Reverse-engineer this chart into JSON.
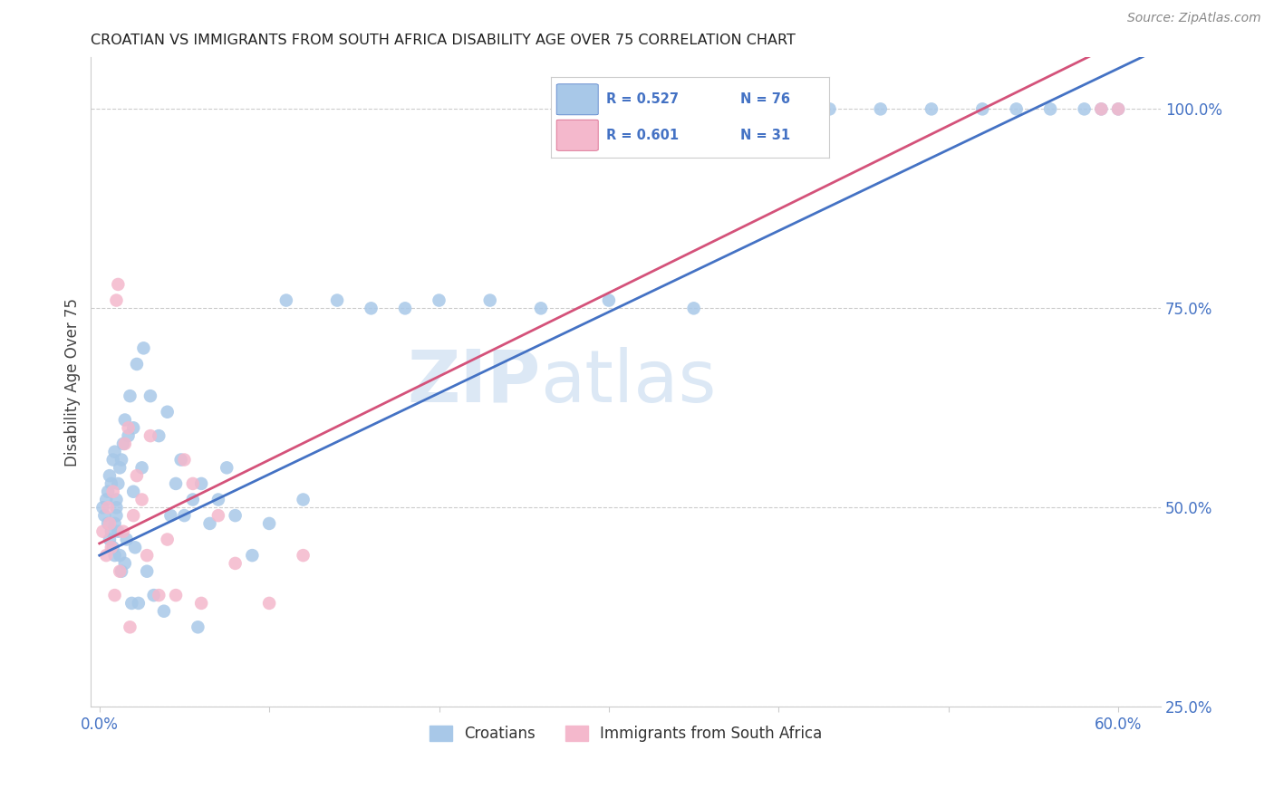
{
  "title": "CROATIAN VS IMMIGRANTS FROM SOUTH AFRICA DISABILITY AGE OVER 75 CORRELATION CHART",
  "source": "Source: ZipAtlas.com",
  "ylabel": "Disability Age Over 75",
  "blue_color": "#a8c8e8",
  "pink_color": "#f4b8cc",
  "blue_line_color": "#4472c4",
  "pink_line_color": "#d4527a",
  "axis_color": "#4472c4",
  "watermark_color": "#dce8f5",
  "blue_r": "R = 0.527",
  "blue_n": "N = 76",
  "pink_r": "R = 0.601",
  "pink_n": "N = 31",
  "croatians_x": [
    0.002,
    0.003,
    0.004,
    0.005,
    0.005,
    0.006,
    0.006,
    0.007,
    0.007,
    0.008,
    0.008,
    0.009,
    0.009,
    0.009,
    0.01,
    0.01,
    0.01,
    0.011,
    0.011,
    0.012,
    0.012,
    0.013,
    0.013,
    0.014,
    0.015,
    0.015,
    0.016,
    0.017,
    0.018,
    0.019,
    0.02,
    0.02,
    0.021,
    0.022,
    0.023,
    0.025,
    0.026,
    0.028,
    0.03,
    0.032,
    0.035,
    0.038,
    0.04,
    0.042,
    0.045,
    0.048,
    0.05,
    0.055,
    0.058,
    0.06,
    0.065,
    0.07,
    0.075,
    0.08,
    0.09,
    0.1,
    0.11,
    0.12,
    0.14,
    0.16,
    0.18,
    0.2,
    0.23,
    0.26,
    0.3,
    0.35,
    0.4,
    0.43,
    0.46,
    0.49,
    0.52,
    0.54,
    0.56,
    0.58,
    0.59,
    0.6
  ],
  "croatians_y": [
    0.5,
    0.49,
    0.51,
    0.48,
    0.52,
    0.46,
    0.54,
    0.47,
    0.53,
    0.45,
    0.56,
    0.44,
    0.57,
    0.48,
    0.5,
    0.51,
    0.49,
    0.53,
    0.47,
    0.55,
    0.44,
    0.56,
    0.42,
    0.58,
    0.43,
    0.61,
    0.46,
    0.59,
    0.64,
    0.38,
    0.52,
    0.6,
    0.45,
    0.68,
    0.38,
    0.55,
    0.7,
    0.42,
    0.64,
    0.39,
    0.59,
    0.37,
    0.62,
    0.49,
    0.53,
    0.56,
    0.49,
    0.51,
    0.35,
    0.53,
    0.48,
    0.51,
    0.55,
    0.49,
    0.44,
    0.48,
    0.76,
    0.51,
    0.76,
    0.75,
    0.75,
    0.76,
    0.76,
    0.75,
    0.76,
    0.75,
    1.0,
    1.0,
    1.0,
    1.0,
    1.0,
    1.0,
    1.0,
    1.0,
    1.0,
    1.0
  ],
  "sa_x": [
    0.002,
    0.004,
    0.005,
    0.006,
    0.007,
    0.008,
    0.009,
    0.01,
    0.011,
    0.012,
    0.014,
    0.015,
    0.017,
    0.018,
    0.02,
    0.022,
    0.025,
    0.028,
    0.03,
    0.035,
    0.04,
    0.045,
    0.05,
    0.055,
    0.06,
    0.07,
    0.08,
    0.1,
    0.12,
    0.59,
    0.6
  ],
  "sa_y": [
    0.47,
    0.44,
    0.5,
    0.48,
    0.45,
    0.52,
    0.39,
    0.76,
    0.78,
    0.42,
    0.47,
    0.58,
    0.6,
    0.35,
    0.49,
    0.54,
    0.51,
    0.44,
    0.59,
    0.39,
    0.46,
    0.39,
    0.56,
    0.53,
    0.38,
    0.49,
    0.43,
    0.38,
    0.44,
    1.0,
    1.0
  ],
  "x_tick_labels": [
    "0.0%",
    "",
    "",
    "",
    "",
    "",
    "60.0%"
  ],
  "x_tick_pos": [
    0.0,
    0.1,
    0.2,
    0.3,
    0.4,
    0.5,
    0.6
  ],
  "y_tick_pos": [
    0.25,
    0.5,
    0.75,
    1.0
  ],
  "y_tick_labels": [
    "25.0%",
    "50.0%",
    "75.0%",
    "100.0%"
  ]
}
